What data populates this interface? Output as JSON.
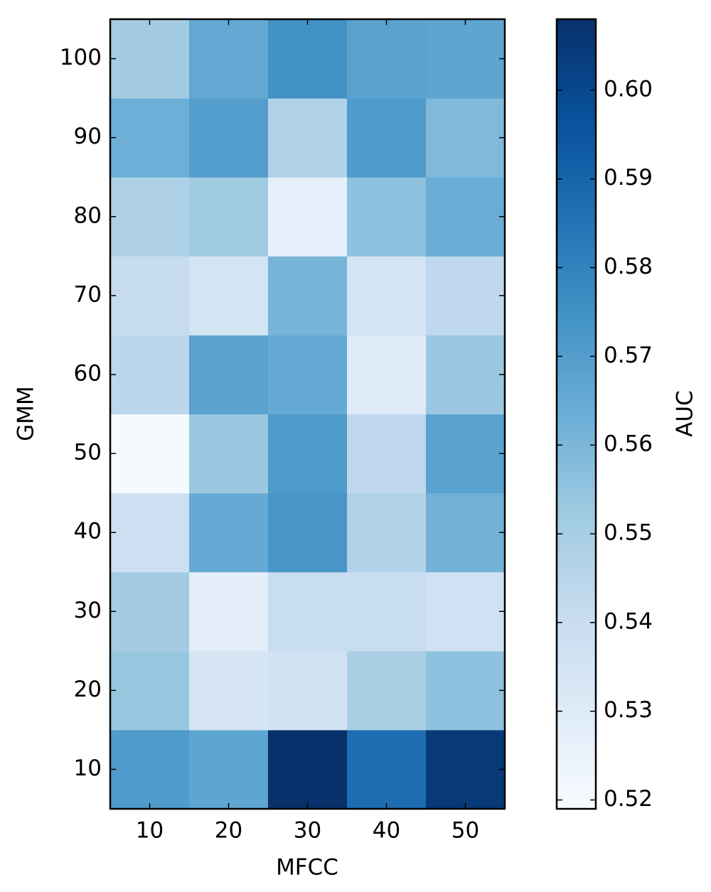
{
  "chart_data": {
    "type": "heatmap",
    "x_label": "MFCC",
    "y_label": "GMM",
    "colorbar_label": "AUC",
    "x": [
      10,
      20,
      30,
      40,
      50
    ],
    "y": [
      10,
      20,
      30,
      40,
      50,
      60,
      70,
      80,
      90,
      100
    ],
    "values": [
      [
        0.571,
        0.567,
        0.608,
        0.587,
        0.605
      ],
      [
        0.554,
        0.534,
        0.536,
        0.549,
        0.556
      ],
      [
        0.551,
        0.528,
        0.54,
        0.54,
        0.537
      ],
      [
        0.538,
        0.565,
        0.573,
        0.547,
        0.562
      ],
      [
        0.52,
        0.553,
        0.571,
        0.543,
        0.568
      ],
      [
        0.544,
        0.568,
        0.565,
        0.53,
        0.553
      ],
      [
        0.541,
        0.535,
        0.561,
        0.535,
        0.543
      ],
      [
        0.548,
        0.552,
        0.527,
        0.556,
        0.564
      ],
      [
        0.563,
        0.57,
        0.547,
        0.571,
        0.559
      ],
      [
        0.551,
        0.566,
        0.575,
        0.568,
        0.567
      ]
    ],
    "clim": [
      0.519,
      0.608
    ],
    "cticks": [
      0.52,
      0.53,
      0.54,
      0.55,
      0.56,
      0.57,
      0.58,
      0.59,
      {
        "value": 0.6,
        "label": "0.60"
      }
    ],
    "colormap": [
      "#f7fbff",
      "#deebf7",
      "#c6dbef",
      "#9ecae1",
      "#6baed6",
      "#4292c6",
      "#2171b5",
      "#08519c",
      "#08306b"
    ]
  }
}
